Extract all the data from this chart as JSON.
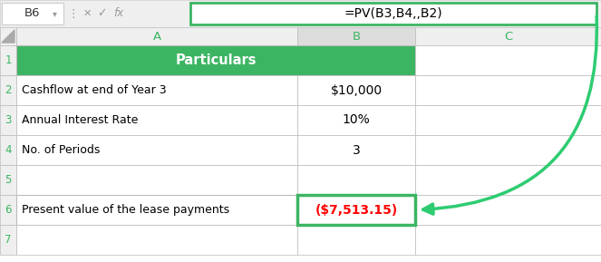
{
  "formula_bar_cell": "B6",
  "formula_bar_formula": "=PV(B3,B4,,B2)",
  "header_label": "Particulars",
  "rows": [
    {
      "row": "2",
      "col_A": "Cashflow at end of Year 3",
      "col_B": "$10,000"
    },
    {
      "row": "3",
      "col_A": "Annual Interest Rate",
      "col_B": "10%"
    },
    {
      "row": "4",
      "col_A": "No. of Periods",
      "col_B": "3"
    },
    {
      "row": "5",
      "col_A": "",
      "col_B": ""
    },
    {
      "row": "6",
      "col_A": "Present value of the lease payments",
      "col_B": "($7,513.15)"
    }
  ],
  "header_bg": "#3CB563",
  "header_text_color": "#FFFFFF",
  "grid_color": "#BBBBBB",
  "cell_bg": "#FFFFFF",
  "selected_col_bg": "#DCDCDC",
  "result_text_color": "#FF0000",
  "result_border_color": "#3CB563",
  "arrow_color": "#2ECC71",
  "formula_border_color": "#3CB563",
  "formula_bg": "#FFFFFF",
  "body_bg": "#F2F2F2",
  "col_header_text": "#3CB563",
  "row_header_text": "#3CB563",
  "formula_bar_bg": "#EFEFEF",
  "icon_color": "#999999",
  "cellref_text": "#333333",
  "normal_text": "#000000"
}
